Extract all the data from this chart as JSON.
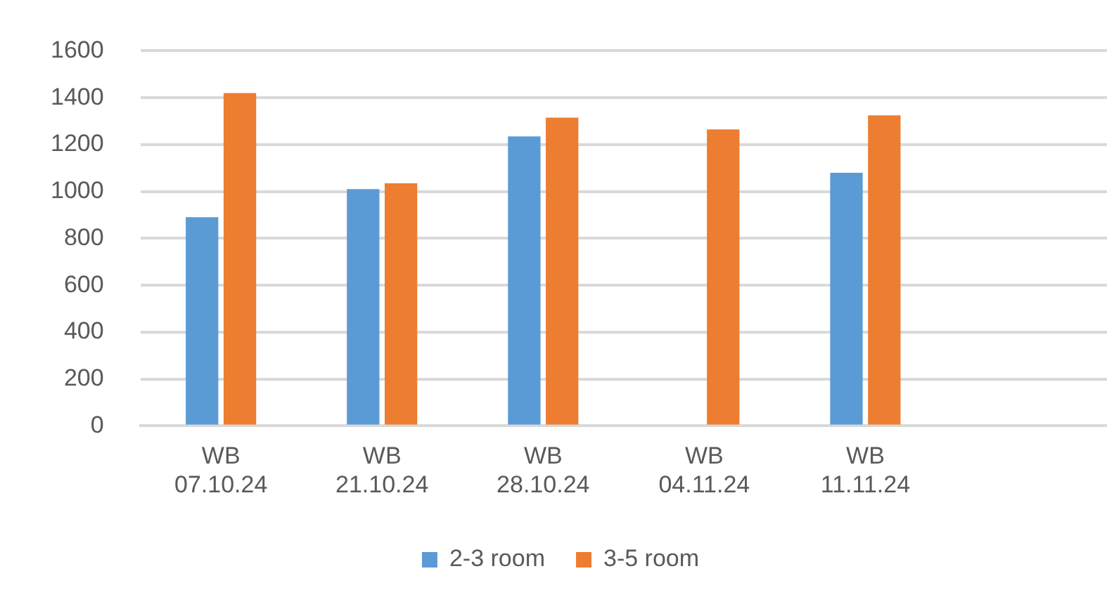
{
  "chart_data": {
    "type": "bar",
    "categories": [
      "WB 07.10.24",
      "WB 21.10.24",
      "WB 28.10.24",
      "WB 04.11.24",
      "WB 11.11.24",
      null
    ],
    "series": [
      {
        "name": "2-3 room",
        "color": "#5b9bd5",
        "values": [
          890,
          1010,
          1235,
          null,
          1080,
          null
        ]
      },
      {
        "name": "3-5 room",
        "color": "#ed7d31",
        "values": [
          1420,
          1035,
          1315,
          1265,
          1325,
          null
        ]
      }
    ],
    "ylim": [
      0,
      1600
    ],
    "yticks": [
      0,
      200,
      400,
      600,
      800,
      1000,
      1200,
      1400,
      1600
    ],
    "grid": "y",
    "legend": "bottom"
  }
}
